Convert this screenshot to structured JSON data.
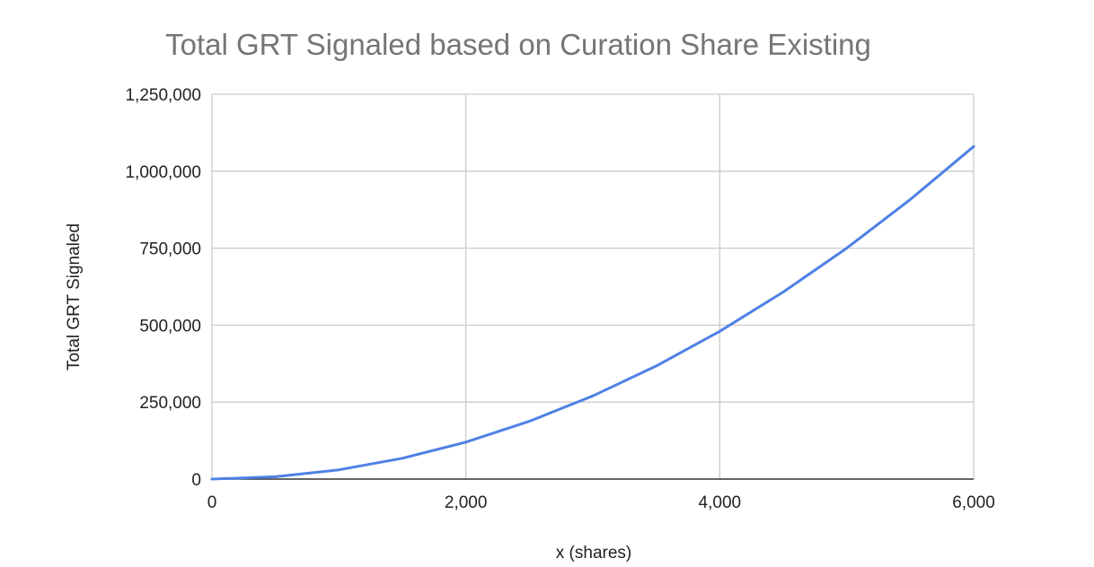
{
  "chart_data": {
    "type": "line",
    "title": "Total GRT Signaled based on Curation Share Existing",
    "xlabel": "x (shares)",
    "ylabel": "Total GRT Signaled",
    "xlim": [
      0,
      6000
    ],
    "ylim": [
      0,
      1250000
    ],
    "x_ticks": [
      0,
      2000,
      4000,
      6000
    ],
    "x_tick_labels": [
      "0",
      "2,000",
      "4,000",
      "6,000"
    ],
    "y_ticks": [
      0,
      250000,
      500000,
      750000,
      1000000,
      1250000
    ],
    "y_tick_labels": [
      "0",
      "250,000",
      "500,000",
      "750,000",
      "1,000,000",
      "1,250,000"
    ],
    "grid": true,
    "series": [
      {
        "color": "#4f81e5",
        "x": [
          0,
          500,
          1000,
          1500,
          2000,
          2500,
          3000,
          3500,
          4000,
          4500,
          5000,
          5500,
          6000
        ],
        "y": [
          0,
          7500,
          30000,
          67500,
          120000,
          187500,
          270000,
          367500,
          480000,
          607500,
          750000,
          907500,
          1080000
        ]
      }
    ]
  },
  "colors": {
    "grid": "#cccccc",
    "axis": "#333333",
    "line": "#4f81e5",
    "title": "#757575"
  }
}
